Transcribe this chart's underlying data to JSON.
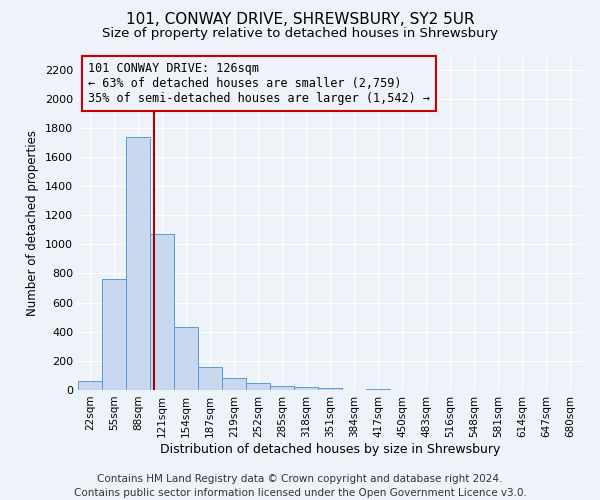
{
  "title": "101, CONWAY DRIVE, SHREWSBURY, SY2 5UR",
  "subtitle": "Size of property relative to detached houses in Shrewsbury",
  "xlabel": "Distribution of detached houses by size in Shrewsbury",
  "ylabel": "Number of detached properties",
  "bin_labels": [
    "22sqm",
    "55sqm",
    "88sqm",
    "121sqm",
    "154sqm",
    "187sqm",
    "219sqm",
    "252sqm",
    "285sqm",
    "318sqm",
    "351sqm",
    "384sqm",
    "417sqm",
    "450sqm",
    "483sqm",
    "516sqm",
    "548sqm",
    "581sqm",
    "614sqm",
    "647sqm",
    "680sqm"
  ],
  "bar_values": [
    60,
    760,
    1740,
    1070,
    430,
    155,
    80,
    45,
    30,
    20,
    15,
    0,
    10,
    0,
    0,
    0,
    0,
    0,
    0,
    0,
    0
  ],
  "bar_color": "#c8d8ee",
  "bar_edgecolor": "#5b9bd5",
  "vline_color": "#aa0000",
  "annotation_text": "101 CONWAY DRIVE: 126sqm\n← 63% of detached houses are smaller (2,759)\n35% of semi-detached houses are larger (1,542) →",
  "annotation_box_edgecolor": "#cc0000",
  "ylim": [
    0,
    2300
  ],
  "yticks": [
    0,
    200,
    400,
    600,
    800,
    1000,
    1200,
    1400,
    1600,
    1800,
    2000,
    2200
  ],
  "footer": "Contains HM Land Registry data © Crown copyright and database right 2024.\nContains public sector information licensed under the Open Government Licence v3.0.",
  "background_color": "#eef2f9",
  "plot_bg_color": "#eef2f9",
  "grid_color": "#ffffff",
  "title_fontsize": 11,
  "subtitle_fontsize": 9.5,
  "footer_fontsize": 7.5
}
